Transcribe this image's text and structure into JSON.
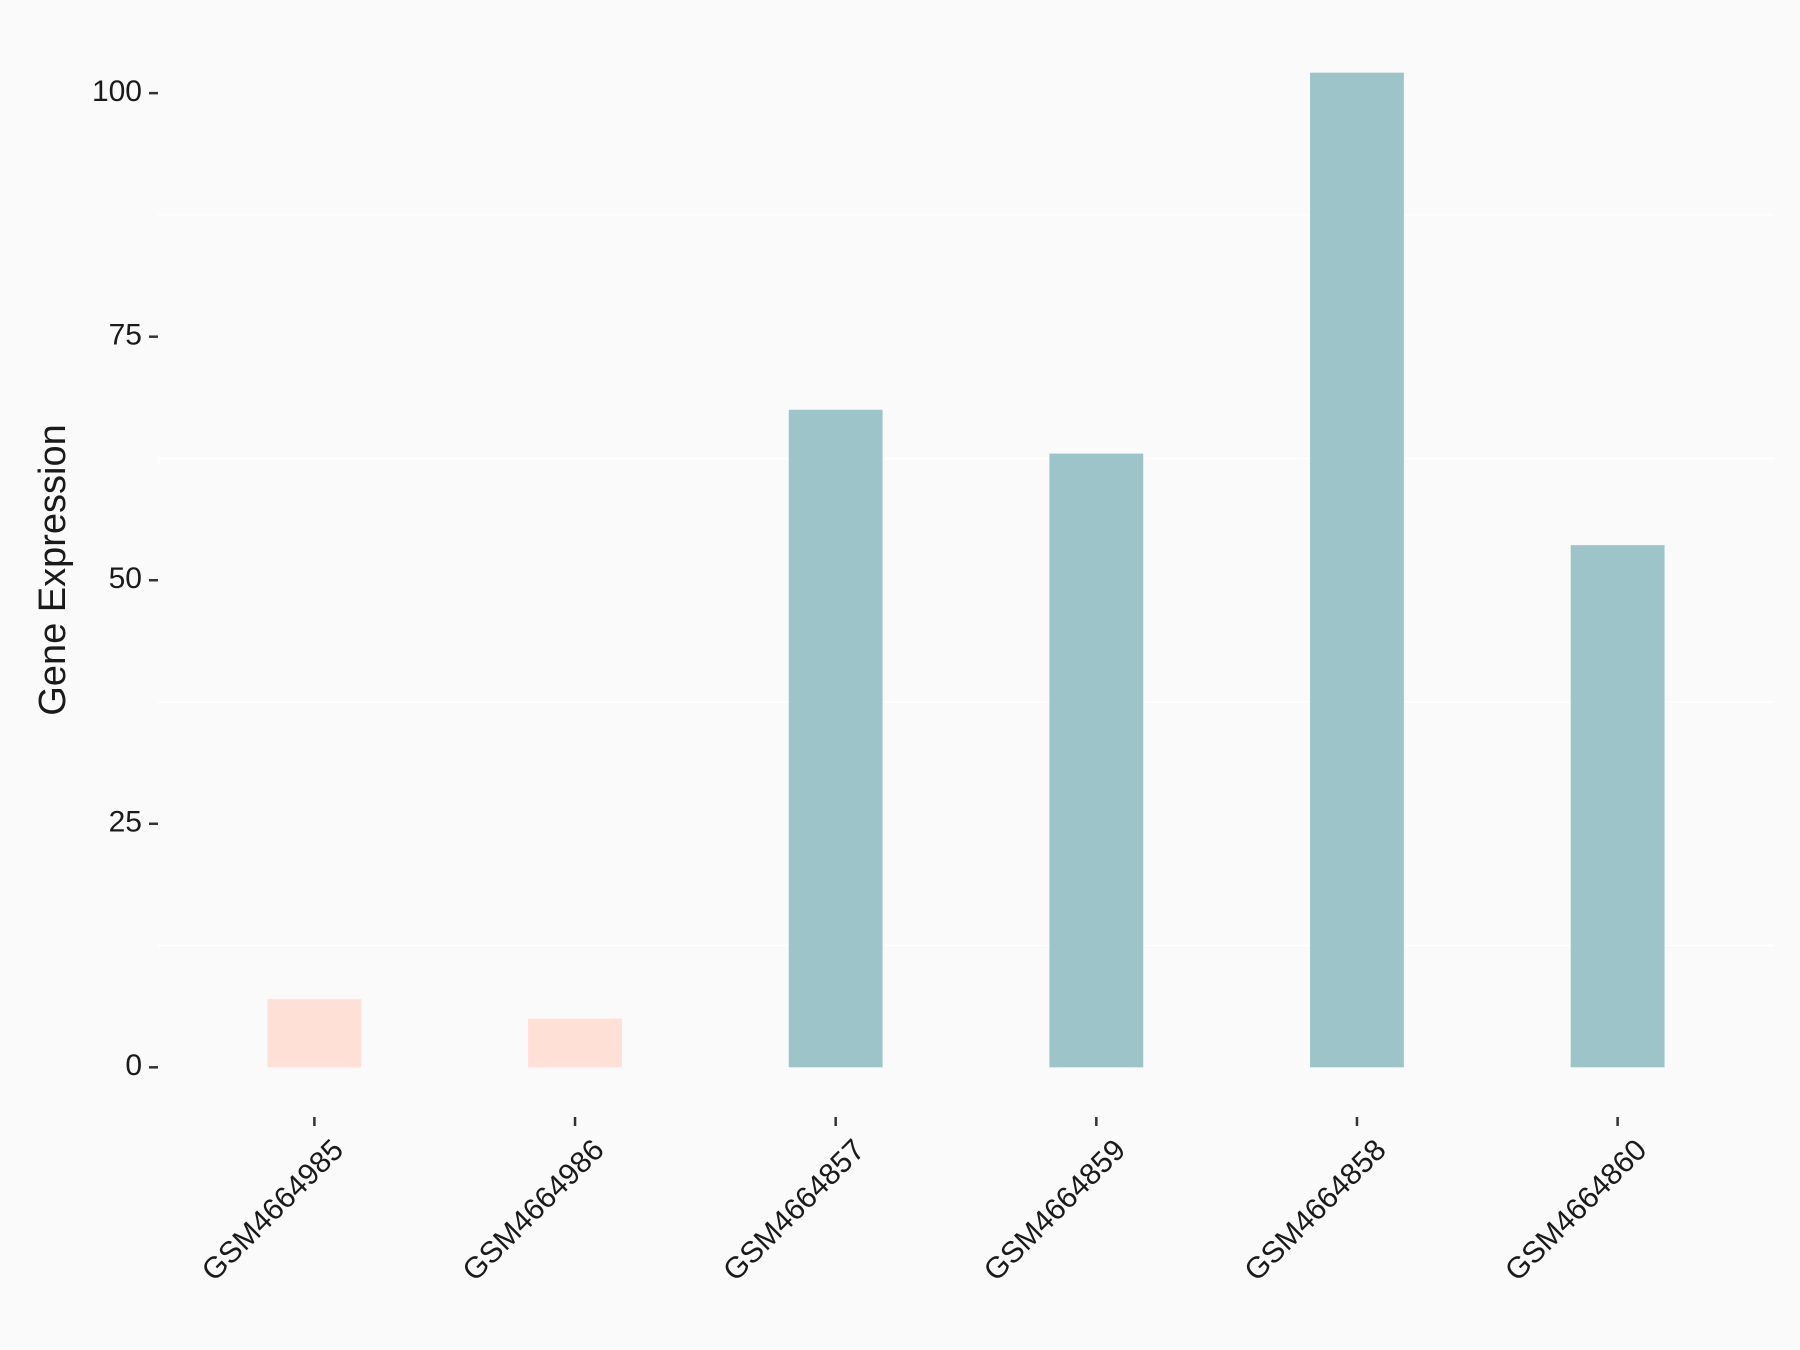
{
  "chart_data": {
    "type": "bar",
    "y_label": "Gene Expression",
    "categories": [
      "GSM4664985",
      "GSM4664986",
      "GSM4664857",
      "GSM4664859",
      "GSM4664858",
      "GSM4664860"
    ],
    "values": [
      7.0,
      5.0,
      67.5,
      63.0,
      102.1,
      53.6
    ],
    "colors": [
      "#ffe0d6",
      "#ffe0d6",
      "#9dc4c8",
      "#9dc4c8",
      "#9dc4c8",
      "#9dc4c8"
    ],
    "ylim": [
      -5.1,
      107.2
    ],
    "yticks": [
      0,
      25,
      50,
      75,
      100
    ],
    "minor_yticks": [
      12.5,
      37.5,
      62.5,
      87.5
    ],
    "grid": true
  }
}
